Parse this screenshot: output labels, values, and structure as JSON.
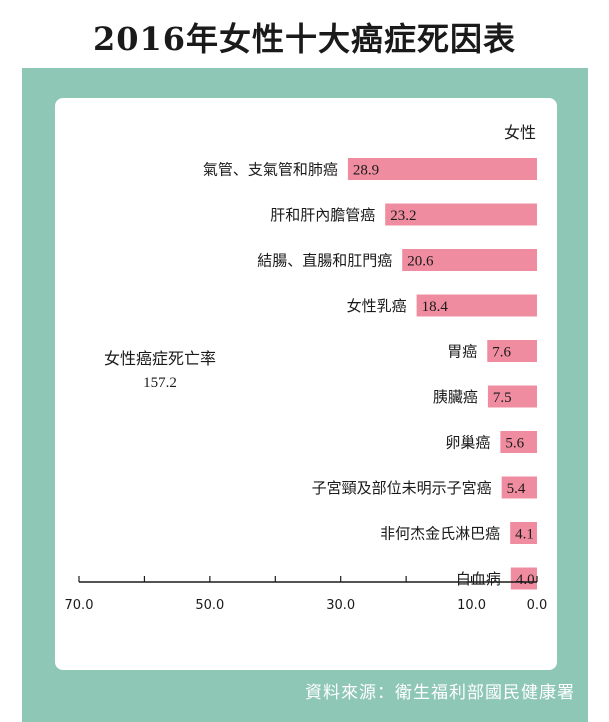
{
  "title": "2016年女性十大癌症死因表",
  "source": "資料來源：衛生福利部國民健康署",
  "colors": {
    "frame": "#8fc7b6",
    "bar": "#f08ca0",
    "text": "#1a1a1a"
  },
  "chart_data": {
    "type": "bar",
    "orientation": "horizontal",
    "x_axis_direction": "reversed",
    "series_label": "女性",
    "annotation": {
      "label": "女性癌症死亡率",
      "value": "157.2"
    },
    "categories": [
      "氣管、支氣管和肺癌",
      "肝和肝內膽管癌",
      "結腸、直腸和肛門癌",
      "女性乳癌",
      "胃癌",
      "胰臟癌",
      "卵巢癌",
      "子宮頸及部位未明示子宮癌",
      "非何杰金氏淋巴癌",
      "白血病"
    ],
    "values": [
      28.9,
      23.2,
      20.6,
      18.4,
      7.6,
      7.5,
      5.6,
      5.4,
      4.1,
      4.0
    ],
    "value_labels": [
      "28.9",
      "23.2",
      "20.6",
      "18.4",
      "7.6",
      "7.5",
      "5.6",
      "5.4",
      "4.1",
      "4.0"
    ],
    "xlim": [
      0,
      70
    ],
    "xticks": [
      70,
      50,
      30,
      10,
      0
    ],
    "xtick_labels": [
      "70.0",
      "50.0",
      "30.0",
      "10.0",
      "0.0"
    ],
    "grid": false,
    "legend": false
  }
}
